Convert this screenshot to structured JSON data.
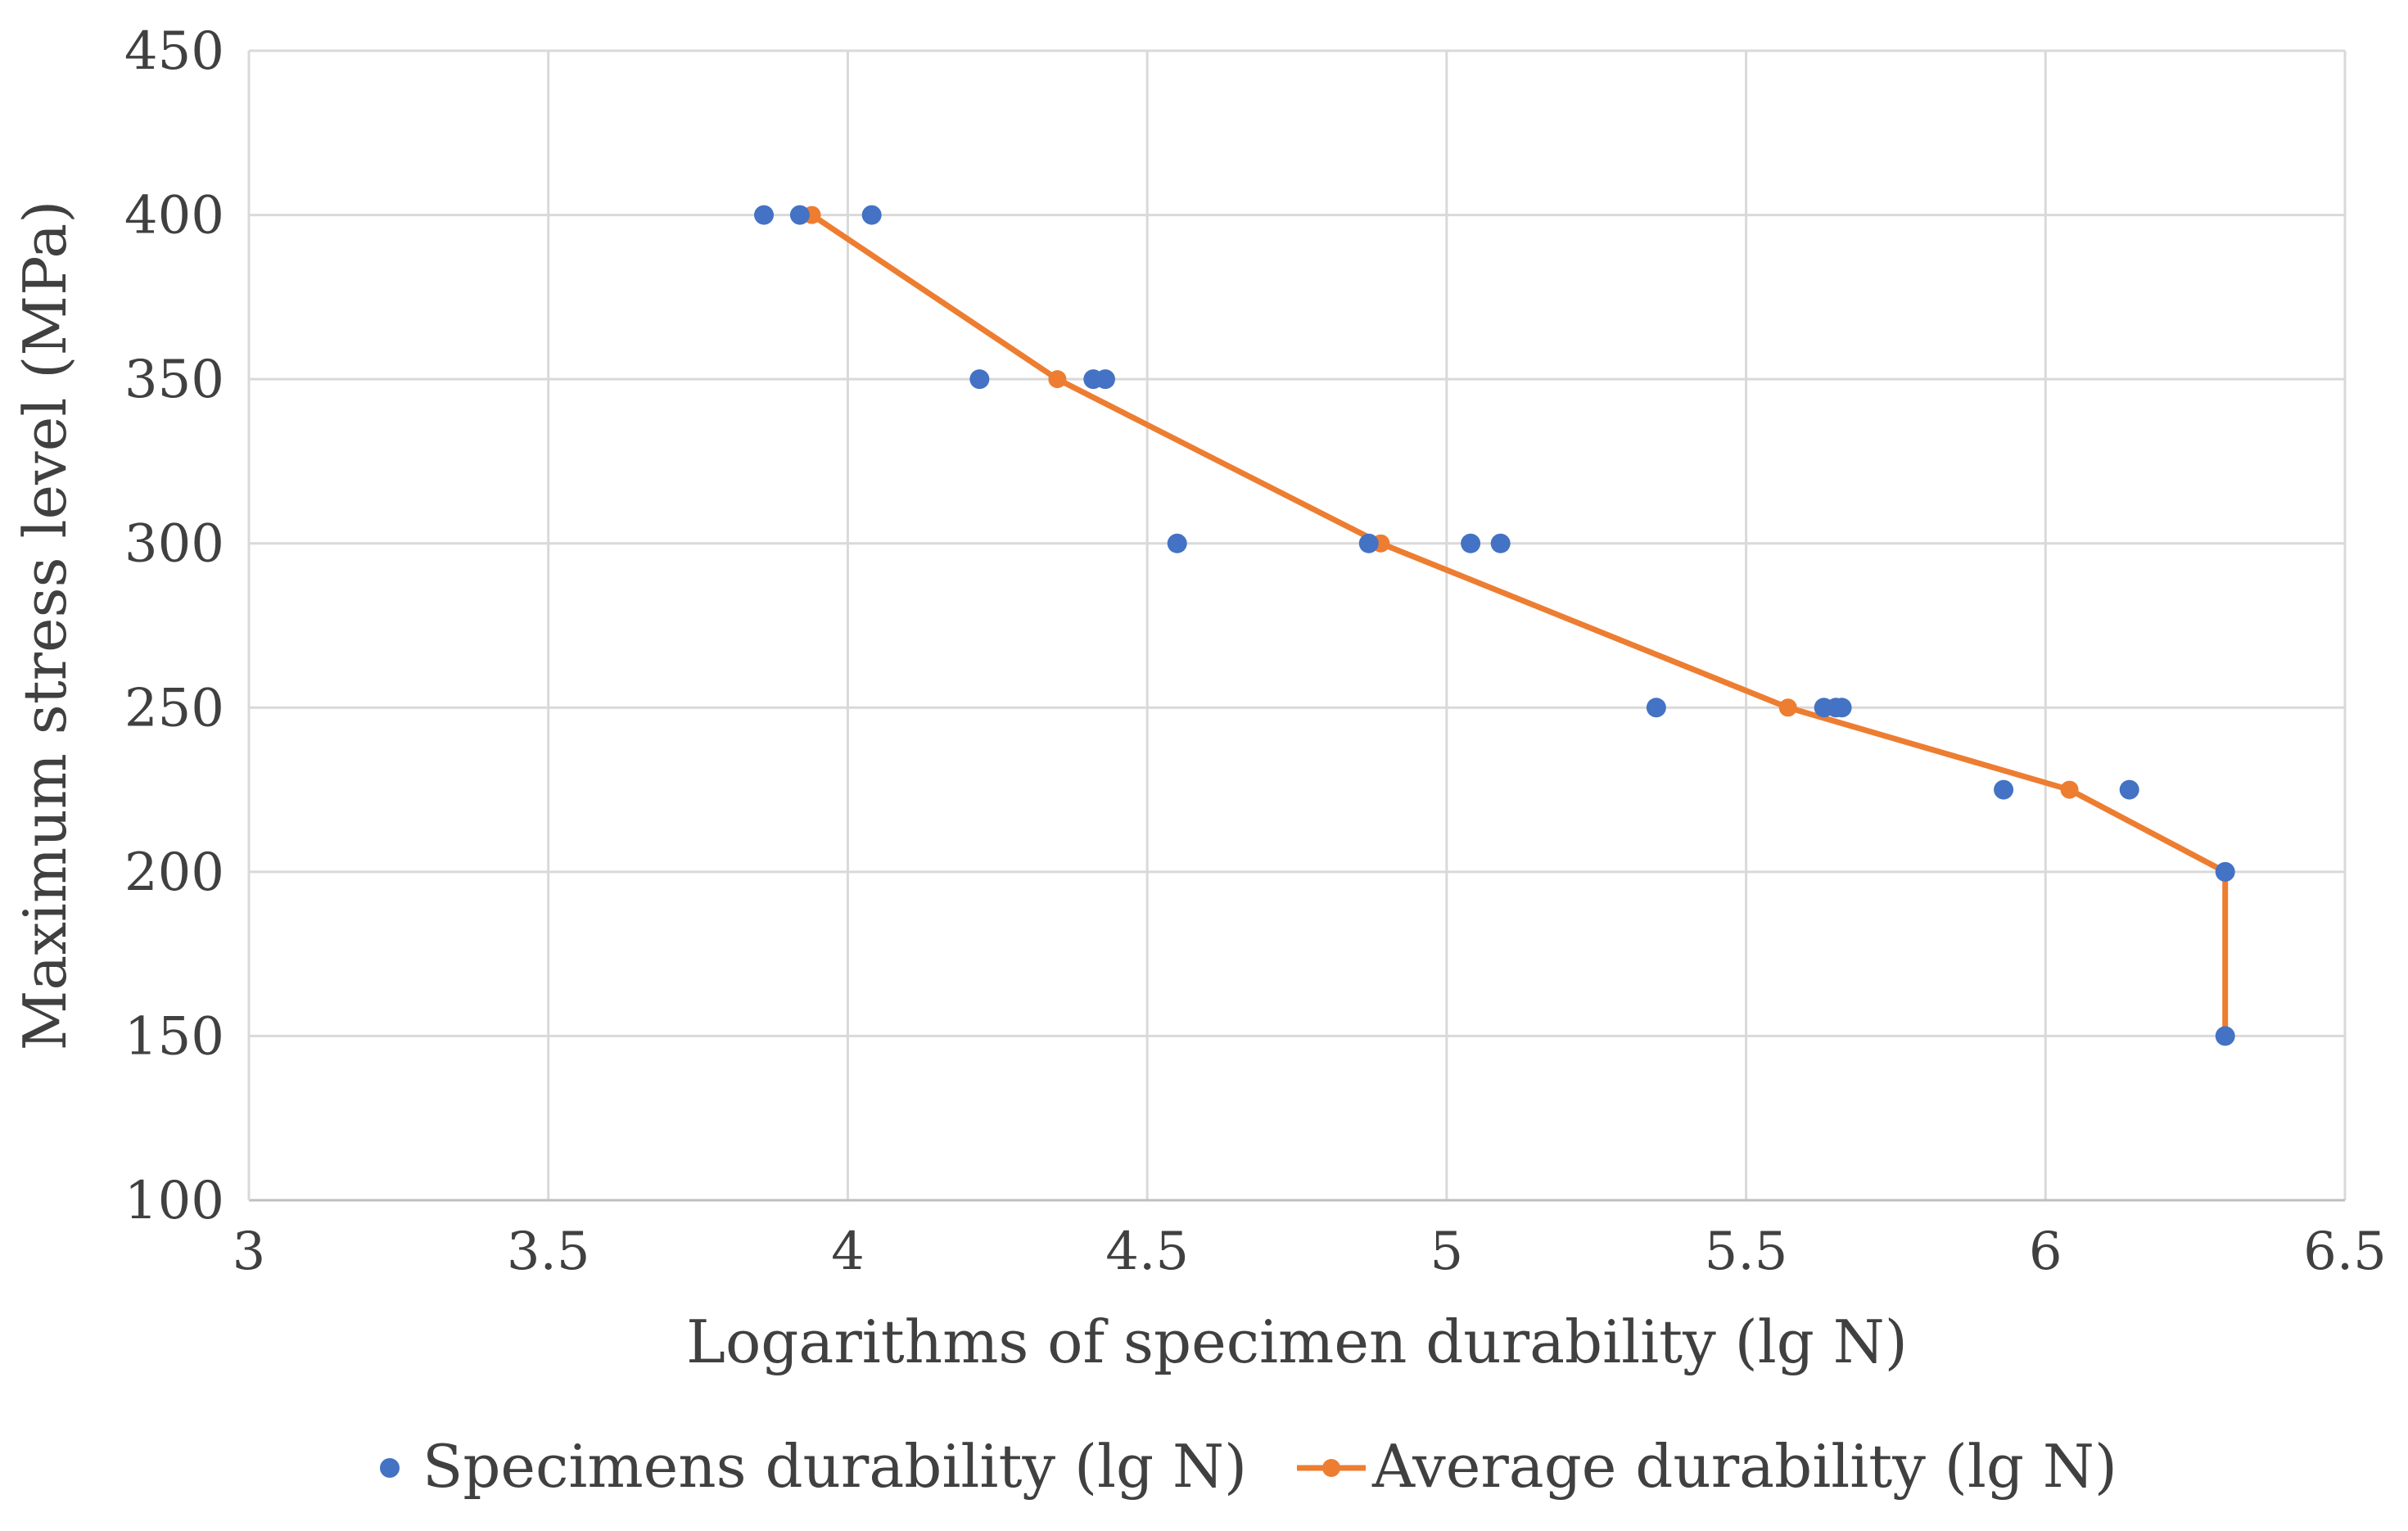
{
  "chart_data": {
    "type": "scatter",
    "xlabel": "Logarithms of specimen durability (lg N)",
    "ylabel": "Maximum stress level (MPa)",
    "xlim": [
      3,
      6.5
    ],
    "ylim": [
      100,
      450
    ],
    "x_ticks": [
      3,
      3.5,
      4,
      4.5,
      5,
      5.5,
      6,
      6.5
    ],
    "x_tick_labels": [
      "3",
      "3.5",
      "4",
      "4.5",
      "5",
      "5.5",
      "6",
      "6.5"
    ],
    "y_ticks": [
      100,
      150,
      200,
      250,
      300,
      350,
      400,
      450
    ],
    "y_tick_labels": [
      "100",
      "150",
      "200",
      "250",
      "300",
      "350",
      "400",
      "450"
    ],
    "grid": true,
    "legend_position": "bottom",
    "series": [
      {
        "name": "Specimens durability (lg N)",
        "kind": "scatter",
        "color": "#4472c4",
        "points": [
          [
            3.86,
            400
          ],
          [
            3.92,
            400
          ],
          [
            4.04,
            400
          ],
          [
            4.22,
            350
          ],
          [
            4.41,
            350
          ],
          [
            4.43,
            350
          ],
          [
            4.55,
            300
          ],
          [
            4.87,
            300
          ],
          [
            5.04,
            300
          ],
          [
            5.09,
            300
          ],
          [
            5.35,
            250
          ],
          [
            5.63,
            250
          ],
          [
            5.65,
            250
          ],
          [
            5.66,
            250
          ],
          [
            5.93,
            225
          ],
          [
            6.14,
            225
          ],
          [
            6.3,
            200
          ],
          [
            6.3,
            150
          ]
        ]
      },
      {
        "name": "Average durability (lg N)",
        "kind": "line",
        "color": "#ed7d31",
        "points": [
          [
            3.94,
            400
          ],
          [
            4.35,
            350
          ],
          [
            4.89,
            300
          ],
          [
            5.57,
            250
          ],
          [
            6.04,
            225
          ],
          [
            6.3,
            200
          ],
          [
            6.3,
            150
          ]
        ]
      }
    ]
  }
}
